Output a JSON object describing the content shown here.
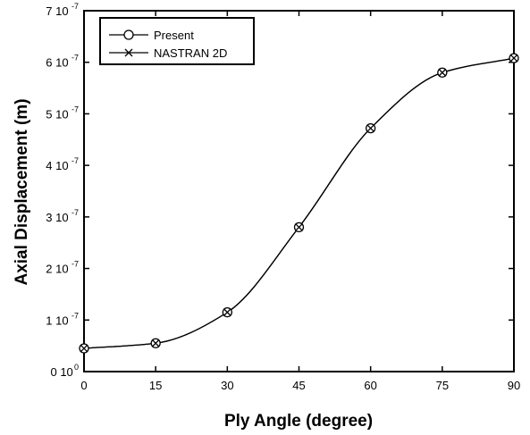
{
  "chart_data": {
    "type": "line",
    "xlabel": "Ply Angle (degree)",
    "ylabel": "Axial Displacement (m)",
    "xlim": [
      0,
      90
    ],
    "ylim": [
      0,
      7e-07
    ],
    "x_ticks": [
      0,
      15,
      30,
      45,
      60,
      75,
      90
    ],
    "x_tick_labels": [
      "0",
      "15",
      "30",
      "45",
      "60",
      "75",
      "90"
    ],
    "y_ticks": [
      0,
      1e-07,
      2e-07,
      3e-07,
      4e-07,
      5e-07,
      6e-07,
      7e-07
    ],
    "y_tick_labels": [
      {
        "mantissa": "0 10",
        "exponent": "0"
      },
      {
        "mantissa": "1 10",
        "exponent": "-7"
      },
      {
        "mantissa": "2 10",
        "exponent": "-7"
      },
      {
        "mantissa": "3 10",
        "exponent": "-7"
      },
      {
        "mantissa": "4 10",
        "exponent": "-7"
      },
      {
        "mantissa": "5 10",
        "exponent": "-7"
      },
      {
        "mantissa": "6 10",
        "exponent": "-7"
      },
      {
        "mantissa": "7 10",
        "exponent": "-7"
      }
    ],
    "grid": false,
    "legend_position": "top-left",
    "x": [
      0,
      15,
      30,
      45,
      60,
      75,
      90
    ],
    "series": [
      {
        "name": "Present",
        "marker": "circle",
        "values": [
          4.5e-08,
          5.5e-08,
          1.15e-07,
          2.8e-07,
          4.72e-07,
          5.8e-07,
          6.08e-07
        ]
      },
      {
        "name": "NASTRAN 2D",
        "marker": "x",
        "values": [
          4.5e-08,
          5.5e-08,
          1.15e-07,
          2.8e-07,
          4.72e-07,
          5.8e-07,
          6.08e-07
        ]
      }
    ]
  }
}
